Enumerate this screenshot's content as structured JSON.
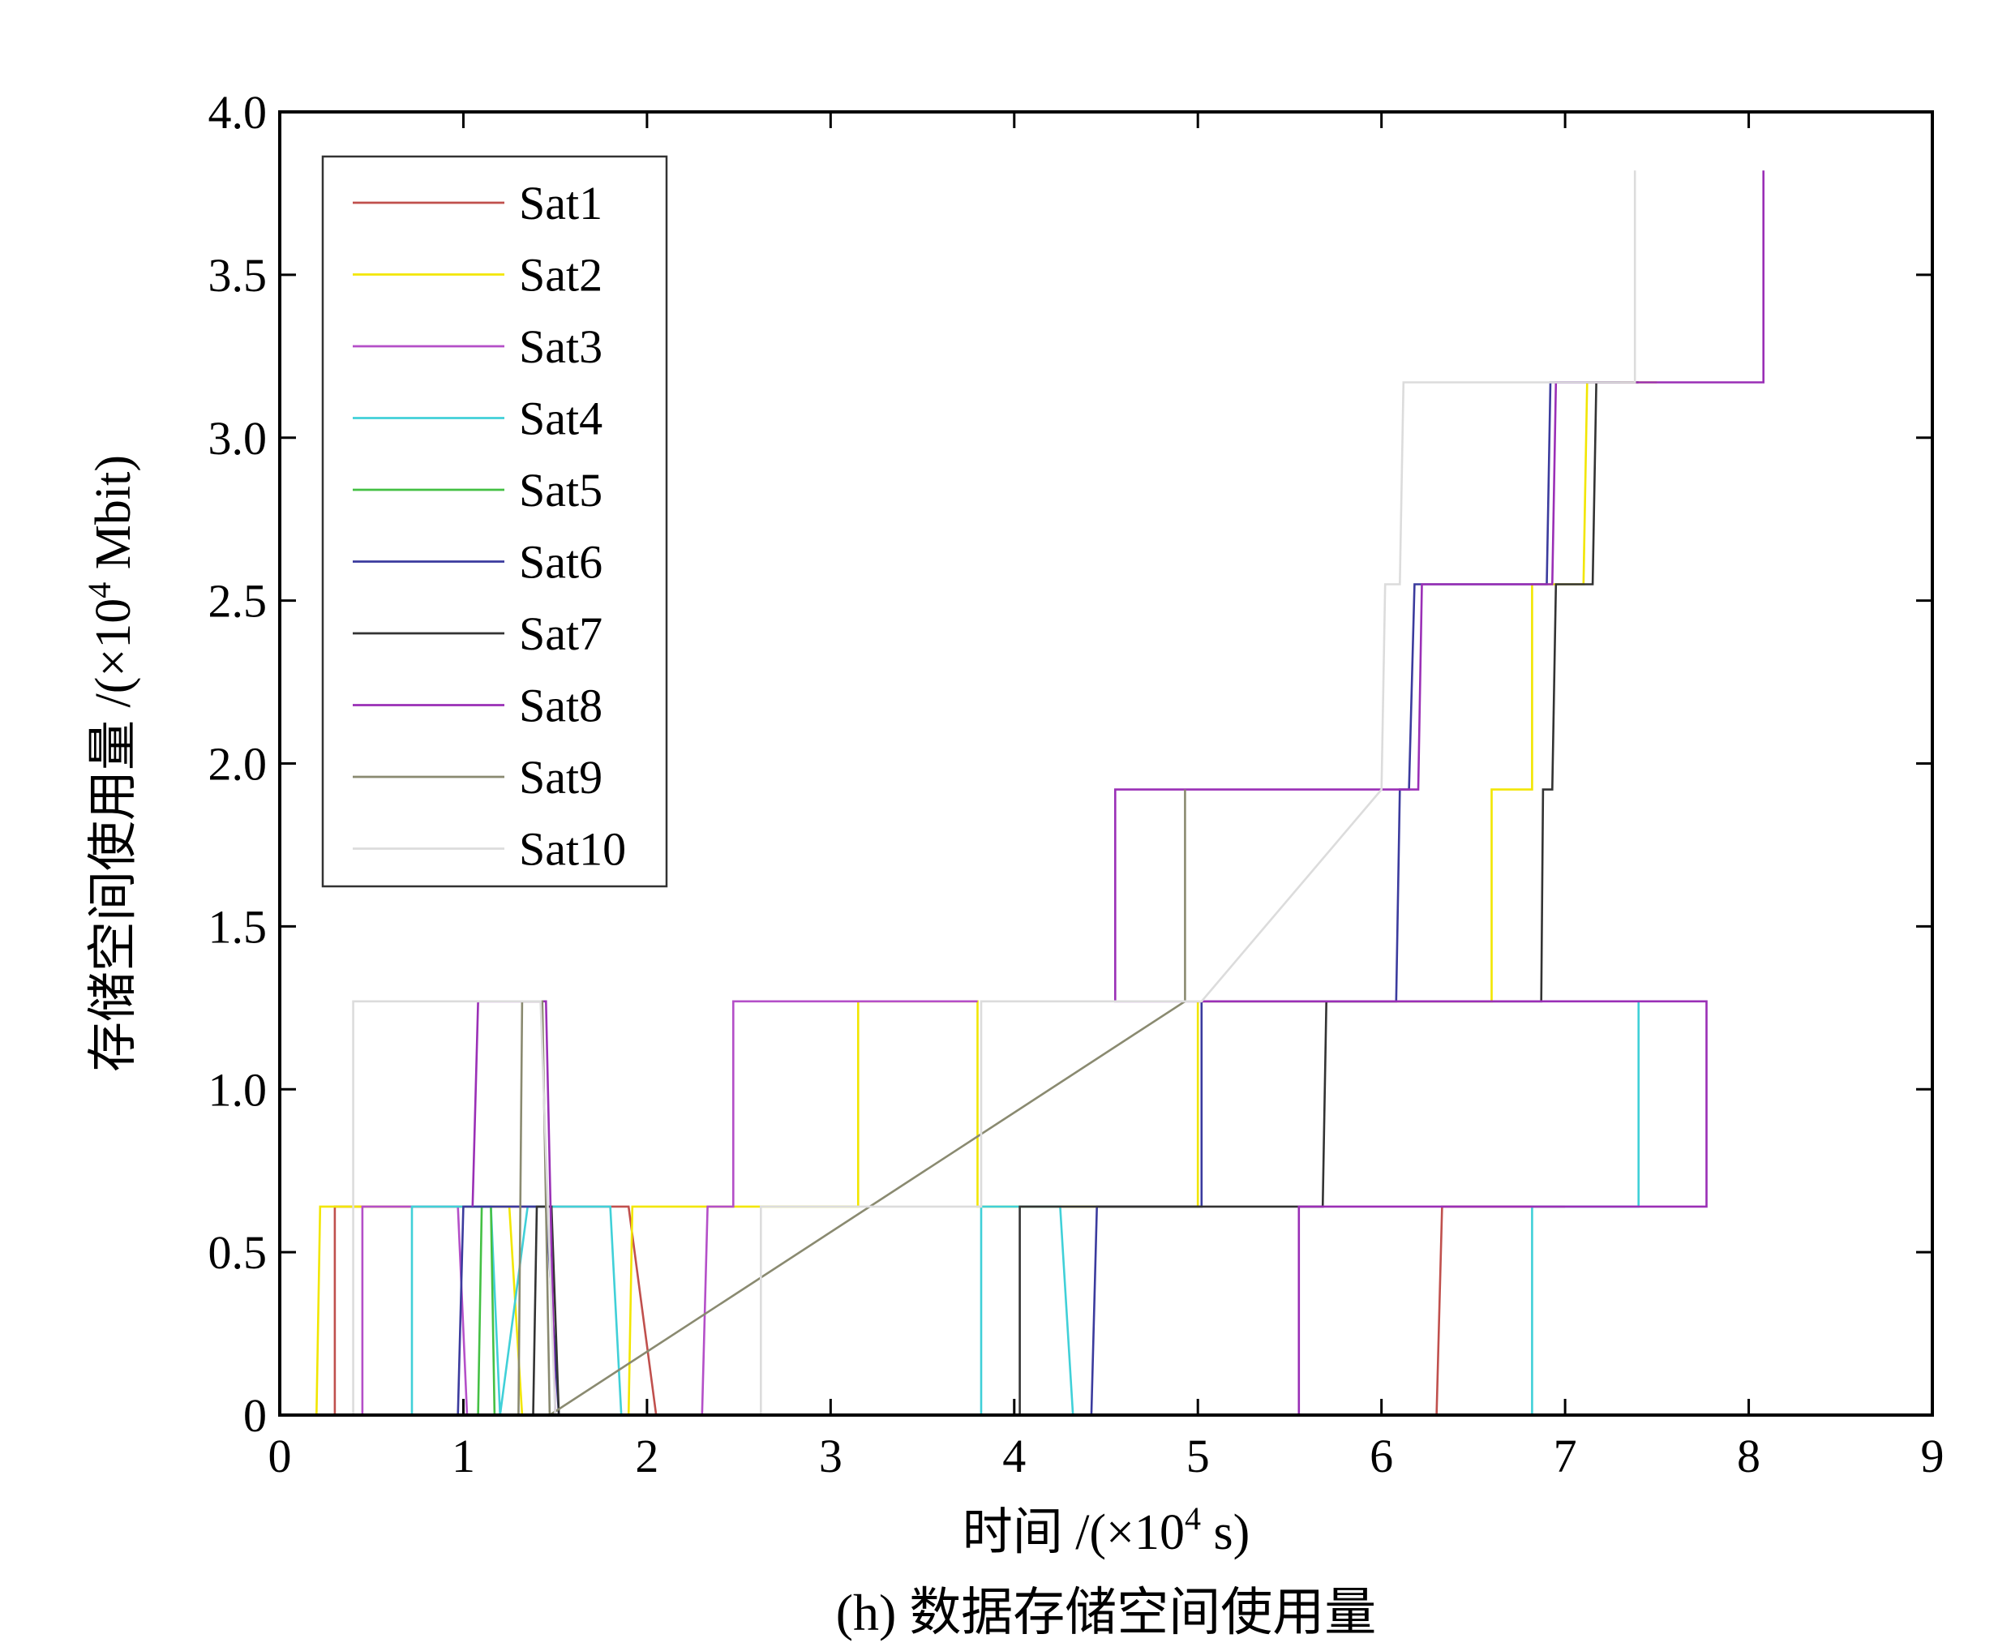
{
  "chart_data": {
    "type": "line",
    "caption": "(h) 数据存储空间使用量",
    "xlabel": {
      "prefix": "时间 /(×10",
      "sup": "4",
      "suffix": " s)"
    },
    "ylabel": {
      "prefix": "存储空间使用量 /(×10",
      "sup": "4",
      "suffix": " Mbit)"
    },
    "xlim": [
      0,
      9
    ],
    "ylim": [
      0,
      4
    ],
    "x_ticks": [
      0,
      1,
      2,
      3,
      4,
      5,
      6,
      7,
      8,
      9
    ],
    "x_tick_labels": [
      "0",
      "1",
      "2",
      "3",
      "4",
      "5",
      "6",
      "7",
      "8",
      "9"
    ],
    "y_ticks": [
      0,
      0.5,
      1,
      1.5,
      2,
      2.5,
      3,
      3.5,
      4
    ],
    "y_tick_labels": [
      "0",
      "0.5",
      "1.0",
      "1.5",
      "2.0",
      "2.5",
      "3.0",
      "3.5",
      "4.0"
    ],
    "grid": false,
    "legend_position": "top-left",
    "series": [
      {
        "name": "Sat1",
        "color": "#c0504d",
        "points": [
          [
            0.3,
            0
          ],
          [
            0.3,
            0.64
          ],
          [
            1.9,
            0.64
          ],
          [
            2.05,
            0
          ],
          [
            6.3,
            0
          ],
          [
            6.33,
            0.64
          ],
          [
            7.0,
            0.64
          ]
        ]
      },
      {
        "name": "Sat2",
        "color": "#f2e600",
        "points": [
          [
            0.2,
            0
          ],
          [
            0.22,
            0.64
          ],
          [
            1.25,
            0.64
          ],
          [
            1.32,
            0
          ],
          [
            1.9,
            0
          ],
          [
            1.92,
            0.64
          ],
          [
            3.15,
            0.64
          ],
          [
            3.15,
            1.27
          ],
          [
            3.8,
            1.27
          ],
          [
            3.8,
            0.64
          ],
          [
            4.5,
            0.64
          ],
          [
            5.0,
            0.64
          ],
          [
            5.0,
            1.27
          ],
          [
            6.6,
            1.27
          ],
          [
            6.6,
            1.92
          ],
          [
            6.82,
            1.92
          ],
          [
            6.82,
            2.55
          ],
          [
            7.1,
            2.55
          ],
          [
            7.12,
            3.17
          ],
          [
            7.5,
            3.17
          ]
        ]
      },
      {
        "name": "Sat3",
        "color": "#b44fc8",
        "points": [
          [
            0.45,
            0
          ],
          [
            0.45,
            0.64
          ],
          [
            0.97,
            0.64
          ],
          [
            1.02,
            0
          ],
          [
            2.3,
            0
          ],
          [
            2.33,
            0.64
          ],
          [
            2.47,
            0.64
          ],
          [
            2.47,
            1.27
          ],
          [
            3.8,
            1.27
          ]
        ]
      },
      {
        "name": "Sat4",
        "color": "#40d0d8",
        "points": [
          [
            0.72,
            0
          ],
          [
            0.72,
            0.64
          ],
          [
            1.15,
            0.64
          ],
          [
            1.2,
            0
          ],
          [
            1.35,
            0.64
          ],
          [
            1.8,
            0.64
          ],
          [
            1.86,
            0
          ],
          [
            3.82,
            0
          ],
          [
            3.82,
            0.64
          ],
          [
            4.25,
            0.64
          ],
          [
            4.32,
            0
          ],
          [
            6.82,
            0
          ],
          [
            6.82,
            0.64
          ],
          [
            7.4,
            0.64
          ],
          [
            7.4,
            1.27
          ]
        ]
      },
      {
        "name": "Sat5",
        "color": "#44c044",
        "points": [
          [
            1.08,
            0
          ],
          [
            1.1,
            0.64
          ],
          [
            1.15,
            0.64
          ],
          [
            1.17,
            0
          ]
        ]
      },
      {
        "name": "Sat6",
        "color": "#3b3b9e",
        "points": [
          [
            0.97,
            0
          ],
          [
            1.0,
            0.64
          ],
          [
            1.45,
            0.64
          ],
          [
            1.52,
            0
          ],
          [
            4.42,
            0
          ],
          [
            4.45,
            0.64
          ],
          [
            5.02,
            0.64
          ],
          [
            5.02,
            1.27
          ],
          [
            6.08,
            1.27
          ],
          [
            6.1,
            1.92
          ],
          [
            6.15,
            1.92
          ],
          [
            6.18,
            2.55
          ],
          [
            6.9,
            2.55
          ],
          [
            6.92,
            3.17
          ],
          [
            7.3,
            3.17
          ]
        ]
      },
      {
        "name": "Sat7",
        "color": "#333333",
        "points": [
          [
            1.38,
            0
          ],
          [
            1.4,
            0.64
          ],
          [
            1.48,
            0.64
          ],
          [
            1.52,
            0
          ],
          [
            4.03,
            0
          ],
          [
            4.03,
            0.64
          ],
          [
            5.68,
            0.64
          ],
          [
            5.7,
            1.27
          ],
          [
            6.87,
            1.27
          ],
          [
            6.88,
            1.92
          ],
          [
            6.93,
            1.92
          ],
          [
            6.95,
            2.55
          ],
          [
            7.15,
            2.55
          ],
          [
            7.17,
            3.17
          ],
          [
            7.4,
            3.17
          ]
        ]
      },
      {
        "name": "Sat8",
        "color": "#9a2fb6",
        "points": [
          [
            1.05,
            0.64
          ],
          [
            1.08,
            1.27
          ],
          [
            1.45,
            1.27
          ],
          [
            1.5,
            0
          ],
          [
            5.55,
            0
          ],
          [
            5.55,
            0.64
          ],
          [
            7.77,
            0.64
          ],
          [
            7.77,
            1.27
          ],
          [
            4.55,
            1.27
          ],
          [
            4.55,
            1.92
          ],
          [
            4.95,
            1.92
          ],
          [
            6.1,
            1.92
          ],
          [
            6.2,
            1.92
          ],
          [
            6.22,
            2.55
          ],
          [
            6.93,
            2.55
          ],
          [
            6.95,
            3.17
          ],
          [
            7.38,
            3.17
          ],
          [
            8.08,
            3.17
          ],
          [
            8.08,
            3.82
          ]
        ]
      },
      {
        "name": "Sat9",
        "color": "#8a8a70",
        "points": [
          [
            1.3,
            0
          ],
          [
            1.32,
            1.27
          ],
          [
            1.43,
            1.27
          ],
          [
            1.47,
            0
          ],
          [
            4.93,
            1.27
          ],
          [
            4.93,
            1.92
          ]
        ]
      },
      {
        "name": "Sat10",
        "color": "#dcdcdc",
        "points": [
          [
            0.4,
            0
          ],
          [
            0.4,
            1.27
          ],
          [
            1.42,
            1.27
          ],
          [
            1.5,
            0
          ],
          [
            2.62,
            0
          ],
          [
            2.62,
            0.64
          ],
          [
            3.82,
            0.64
          ],
          [
            3.82,
            1.27
          ],
          [
            5.02,
            1.27
          ],
          [
            6.0,
            1.92
          ],
          [
            6.02,
            2.55
          ],
          [
            6.1,
            2.55
          ],
          [
            6.12,
            3.17
          ],
          [
            7.38,
            3.17
          ],
          [
            7.38,
            3.82
          ]
        ]
      }
    ]
  }
}
